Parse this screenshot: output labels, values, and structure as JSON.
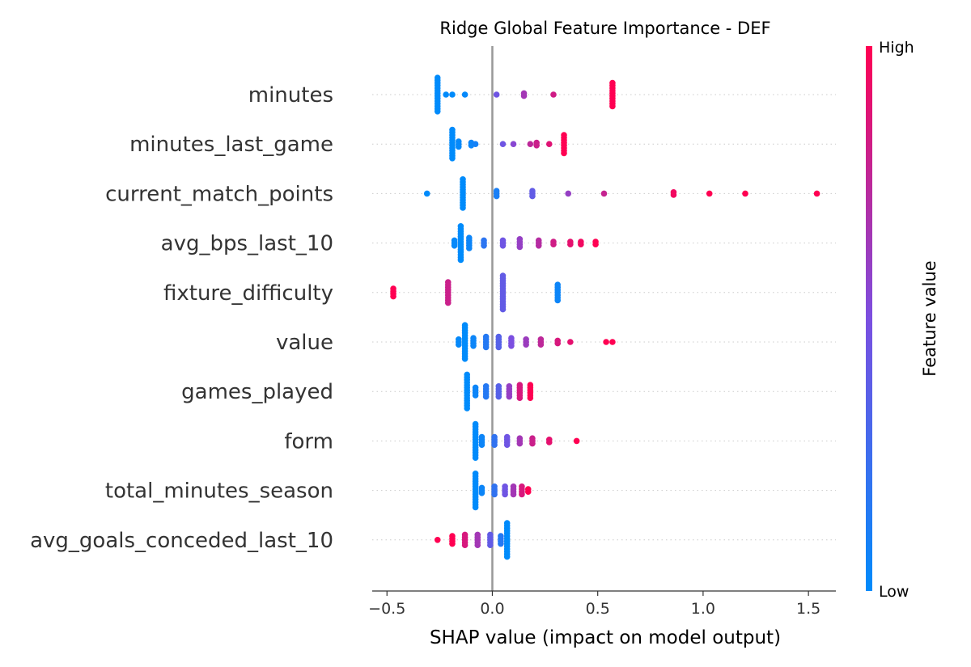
{
  "chart_data": {
    "type": "scatter",
    "subtype": "shap-beeswarm",
    "title": "Ridge Global Feature Importance - DEF",
    "xlabel": "SHAP value (impact on model output)",
    "xlim": [
      -0.57,
      1.63
    ],
    "xticks": [
      -0.5,
      0.0,
      0.5,
      1.0,
      1.5
    ],
    "xtick_labels": [
      "−0.5",
      "0.0",
      "0.5",
      "1.0",
      "1.5"
    ],
    "zero_line": 0.0,
    "colorbar": {
      "title": "Feature value",
      "high_label": "High",
      "low_label": "Low",
      "low_color": "#008bfb",
      "high_color": "#ff0052"
    },
    "features": [
      {
        "name": "minutes",
        "points": [
          {
            "x": -0.26,
            "c": 0.0,
            "n": 14
          },
          {
            "x": -0.22,
            "c": 0.0,
            "n": 1
          },
          {
            "x": -0.19,
            "c": 0.0,
            "n": 1
          },
          {
            "x": -0.13,
            "c": 0.02,
            "n": 1
          },
          {
            "x": 0.02,
            "c": 0.45,
            "n": 1
          },
          {
            "x": 0.15,
            "c": 0.65,
            "n": 2
          },
          {
            "x": 0.29,
            "c": 0.82,
            "n": 1
          },
          {
            "x": 0.57,
            "c": 1.0,
            "n": 10
          }
        ]
      },
      {
        "name": "minutes_last_game",
        "points": [
          {
            "x": -0.19,
            "c": 0.0,
            "n": 12
          },
          {
            "x": -0.16,
            "c": 0.02,
            "n": 3
          },
          {
            "x": -0.1,
            "c": 0.05,
            "n": 2
          },
          {
            "x": -0.08,
            "c": 0.08,
            "n": 1
          },
          {
            "x": 0.05,
            "c": 0.45,
            "n": 1
          },
          {
            "x": 0.1,
            "c": 0.55,
            "n": 1
          },
          {
            "x": 0.18,
            "c": 0.75,
            "n": 1
          },
          {
            "x": 0.21,
            "c": 0.8,
            "n": 2
          },
          {
            "x": 0.27,
            "c": 0.88,
            "n": 1
          },
          {
            "x": 0.34,
            "c": 1.0,
            "n": 8
          }
        ]
      },
      {
        "name": "current_match_points",
        "points": [
          {
            "x": -0.31,
            "c": 0.0,
            "n": 1
          },
          {
            "x": -0.14,
            "c": 0.0,
            "n": 12
          },
          {
            "x": 0.02,
            "c": 0.1,
            "n": 3
          },
          {
            "x": 0.19,
            "c": 0.4,
            "n": 3
          },
          {
            "x": 0.36,
            "c": 0.6,
            "n": 1
          },
          {
            "x": 0.53,
            "c": 0.78,
            "n": 1
          },
          {
            "x": 0.86,
            "c": 0.95,
            "n": 2
          },
          {
            "x": 1.03,
            "c": 1.0,
            "n": 1
          },
          {
            "x": 1.2,
            "c": 1.0,
            "n": 1
          },
          {
            "x": 1.54,
            "c": 1.0,
            "n": 1
          }
        ]
      },
      {
        "name": "avg_bps_last_10",
        "points": [
          {
            "x": -0.15,
            "c": 0.0,
            "n": 14
          },
          {
            "x": -0.18,
            "c": 0.02,
            "n": 3
          },
          {
            "x": -0.11,
            "c": 0.05,
            "n": 5
          },
          {
            "x": -0.04,
            "c": 0.18,
            "n": 3
          },
          {
            "x": 0.05,
            "c": 0.45,
            "n": 3
          },
          {
            "x": 0.13,
            "c": 0.6,
            "n": 4
          },
          {
            "x": 0.22,
            "c": 0.72,
            "n": 3
          },
          {
            "x": 0.29,
            "c": 0.82,
            "n": 2
          },
          {
            "x": 0.37,
            "c": 0.9,
            "n": 2
          },
          {
            "x": 0.42,
            "c": 0.95,
            "n": 2
          },
          {
            "x": 0.49,
            "c": 1.0,
            "n": 2
          }
        ]
      },
      {
        "name": "fixture_difficulty",
        "points": [
          {
            "x": -0.47,
            "c": 1.0,
            "n": 4
          },
          {
            "x": -0.21,
            "c": 0.8,
            "n": 9
          },
          {
            "x": 0.05,
            "c": 0.4,
            "n": 14
          },
          {
            "x": 0.31,
            "c": 0.05,
            "n": 7
          }
        ]
      },
      {
        "name": "value",
        "points": [
          {
            "x": -0.13,
            "c": 0.0,
            "n": 14
          },
          {
            "x": -0.16,
            "c": 0.02,
            "n": 3
          },
          {
            "x": -0.09,
            "c": 0.05,
            "n": 4
          },
          {
            "x": -0.03,
            "c": 0.15,
            "n": 5
          },
          {
            "x": 0.03,
            "c": 0.35,
            "n": 5
          },
          {
            "x": 0.09,
            "c": 0.5,
            "n": 4
          },
          {
            "x": 0.16,
            "c": 0.62,
            "n": 3
          },
          {
            "x": 0.23,
            "c": 0.75,
            "n": 3
          },
          {
            "x": 0.31,
            "c": 0.85,
            "n": 2
          },
          {
            "x": 0.37,
            "c": 0.9,
            "n": 1
          },
          {
            "x": 0.54,
            "c": 1.0,
            "n": 1
          },
          {
            "x": 0.57,
            "c": 1.0,
            "n": 1
          }
        ]
      },
      {
        "name": "games_played",
        "points": [
          {
            "x": -0.12,
            "c": 0.0,
            "n": 14
          },
          {
            "x": -0.08,
            "c": 0.05,
            "n": 4
          },
          {
            "x": -0.03,
            "c": 0.15,
            "n": 5
          },
          {
            "x": 0.03,
            "c": 0.35,
            "n": 5
          },
          {
            "x": 0.08,
            "c": 0.6,
            "n": 5
          },
          {
            "x": 0.13,
            "c": 0.85,
            "n": 6
          },
          {
            "x": 0.18,
            "c": 1.0,
            "n": 6
          }
        ]
      },
      {
        "name": "form",
        "points": [
          {
            "x": -0.08,
            "c": 0.0,
            "n": 14
          },
          {
            "x": -0.05,
            "c": 0.05,
            "n": 4
          },
          {
            "x": 0.01,
            "c": 0.2,
            "n": 4
          },
          {
            "x": 0.07,
            "c": 0.45,
            "n": 4
          },
          {
            "x": 0.13,
            "c": 0.65,
            "n": 3
          },
          {
            "x": 0.19,
            "c": 0.8,
            "n": 3
          },
          {
            "x": 0.27,
            "c": 0.9,
            "n": 2
          },
          {
            "x": 0.4,
            "c": 1.0,
            "n": 1
          }
        ]
      },
      {
        "name": "total_minutes_season",
        "points": [
          {
            "x": -0.08,
            "c": 0.0,
            "n": 14
          },
          {
            "x": -0.05,
            "c": 0.05,
            "n": 3
          },
          {
            "x": 0.01,
            "c": 0.2,
            "n": 4
          },
          {
            "x": 0.06,
            "c": 0.45,
            "n": 4
          },
          {
            "x": 0.1,
            "c": 0.65,
            "n": 4
          },
          {
            "x": 0.14,
            "c": 0.85,
            "n": 4
          },
          {
            "x": 0.17,
            "c": 1.0,
            "n": 2
          }
        ]
      },
      {
        "name": "avg_goals_conceded_last_10",
        "points": [
          {
            "x": 0.07,
            "c": 0.0,
            "n": 14
          },
          {
            "x": 0.04,
            "c": 0.15,
            "n": 4
          },
          {
            "x": -0.01,
            "c": 0.4,
            "n": 5
          },
          {
            "x": -0.07,
            "c": 0.65,
            "n": 5
          },
          {
            "x": -0.13,
            "c": 0.85,
            "n": 5
          },
          {
            "x": -0.19,
            "c": 1.0,
            "n": 4
          },
          {
            "x": -0.26,
            "c": 1.0,
            "n": 1
          }
        ]
      }
    ]
  }
}
